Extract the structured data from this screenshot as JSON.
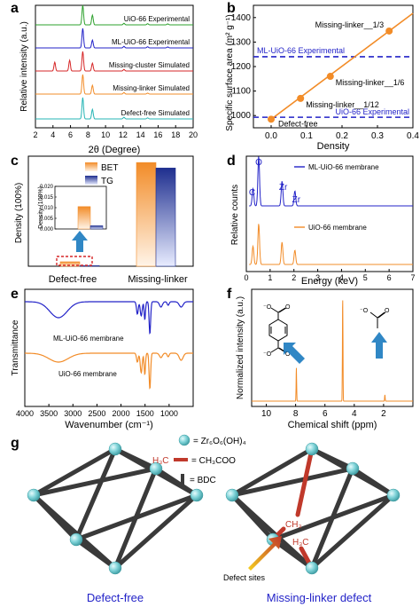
{
  "colors": {
    "green": "#2ca02c",
    "blue": "#2323c8",
    "red": "#d62728",
    "orange": "#f28c28",
    "cyan": "#26b5b5",
    "navy": "#1f2f8f",
    "dark": "#000000",
    "node": "#7fd3d8",
    "edge": "#3a3a3a",
    "defect_red": "#c0392b"
  },
  "panel_labels": [
    "a",
    "b",
    "c",
    "d",
    "e",
    "f",
    "g"
  ],
  "chart_data": [
    {
      "panel": "a",
      "type": "line",
      "xlabel": "2θ (Degree)",
      "ylabel": "Relative intensity (a.u.)",
      "xlim": [
        2,
        20
      ],
      "xticks": [
        2,
        4,
        6,
        8,
        10,
        12,
        14,
        16,
        18,
        20
      ],
      "series": [
        {
          "name": "UiO-66 Experimental",
          "color": "#2ca02c",
          "peaks": [
            [
              7.4,
              1.0
            ],
            [
              8.5,
              0.5
            ],
            [
              12.1,
              0.08
            ],
            [
              14.8,
              0.06
            ],
            [
              17.1,
              0.05
            ]
          ]
        },
        {
          "name": "ML-UiO-66 Experimental",
          "color": "#2323c8",
          "peaks": [
            [
              7.4,
              1.0
            ],
            [
              8.5,
              0.4
            ],
            [
              12.1,
              0.08
            ],
            [
              14.8,
              0.06
            ],
            [
              17.1,
              0.05
            ]
          ]
        },
        {
          "name": "Missing-cluster Simulated",
          "color": "#d62728",
          "peaks": [
            [
              4.2,
              0.45
            ],
            [
              5.9,
              0.55
            ],
            [
              7.4,
              1.0
            ],
            [
              8.5,
              0.4
            ],
            [
              12.1,
              0.08
            ]
          ]
        },
        {
          "name": "Missing-linker Simulated",
          "color": "#f28c28",
          "peaks": [
            [
              7.4,
              1.0
            ],
            [
              8.5,
              0.45
            ],
            [
              12.1,
              0.08
            ],
            [
              14.8,
              0.05
            ]
          ]
        },
        {
          "name": "Defect-free Simulated",
          "color": "#26b5b5",
          "peaks": [
            [
              7.4,
              1.0
            ],
            [
              8.5,
              0.45
            ],
            [
              12.1,
              0.08
            ],
            [
              14.8,
              0.05
            ]
          ]
        }
      ]
    },
    {
      "panel": "b",
      "type": "scatter",
      "xlabel": "Density",
      "ylabel": "Specific surface area (m² g⁻¹)",
      "xlim": [
        -0.05,
        0.4
      ],
      "ylim": [
        950,
        1450
      ],
      "xticks": [
        "0.0",
        "0.1",
        "0.2",
        "0.3",
        "0.4"
      ],
      "yticks": [
        "1000",
        "1100",
        "1200",
        "1300",
        "1400"
      ],
      "points": [
        {
          "label": "Defect-free",
          "x": 0.0,
          "y": 985
        },
        {
          "label": "Missing-linker__1/12",
          "x": 0.083,
          "y": 1070
        },
        {
          "label": "Missing-linker__1/6",
          "x": 0.167,
          "y": 1160
        },
        {
          "label": "Missing-linker__1/3",
          "x": 0.333,
          "y": 1345
        }
      ],
      "hlines": [
        {
          "label": "ML-UiO-66 Experimental",
          "y": 1240
        },
        {
          "label": "UiO-66 Experimental",
          "y": 993
        }
      ]
    },
    {
      "panel": "c",
      "type": "bar",
      "ylabel": "Density (100%)",
      "categories": [
        "Defect-free",
        "Missing-linker"
      ],
      "series": [
        {
          "name": "BET",
          "values": [
            0.0105,
            0.245
          ]
        },
        {
          "name": "TG",
          "values": [
            0.0015,
            0.232
          ]
        }
      ],
      "inset_ylabel": "Density (100%)",
      "inset_yticks": [
        "0.000",
        "0.005",
        "0.010",
        "0.015",
        "0.020"
      ],
      "inset_ylim": [
        0,
        0.02
      ]
    },
    {
      "panel": "d",
      "type": "line",
      "xlabel": "Energy (keV)",
      "ylabel": "Relative counts",
      "xlim": [
        0,
        7
      ],
      "xticks": [
        "0",
        "1",
        "2",
        "3",
        "4",
        "5",
        "6",
        "7"
      ],
      "series": [
        {
          "name": "ML-UiO-66 membrane",
          "peaks": [
            [
              0.28,
              0.35
            ],
            [
              0.52,
              1.0
            ],
            [
              1.5,
              0.5
            ],
            [
              2.04,
              0.3
            ]
          ]
        },
        {
          "name": "UiO-66 membrane",
          "peaks": [
            [
              0.28,
              0.45
            ],
            [
              0.52,
              1.0
            ],
            [
              1.5,
              0.55
            ],
            [
              2.04,
              0.35
            ]
          ]
        }
      ],
      "annotations": [
        "C",
        "O",
        "Zr",
        "Zr"
      ]
    },
    {
      "panel": "e",
      "type": "line",
      "xlabel": "Wavenumber (cm⁻¹)",
      "ylabel": "Transmittance",
      "xlim": [
        4000,
        500
      ],
      "xticks": [
        "4000",
        "3500",
        "3000",
        "2500",
        "2000",
        "1500",
        "1000"
      ],
      "series": [
        {
          "name": "ML-UiO-66 membrane"
        },
        {
          "name": "UiO-66 membrane"
        }
      ]
    },
    {
      "panel": "f",
      "type": "line",
      "xlabel": "Chemical shift (ppm)",
      "ylabel": "Normalized intensity (a.u.)",
      "xlim": [
        11,
        0
      ],
      "xticks": [
        "10",
        "8",
        "6",
        "4",
        "2"
      ],
      "peaks": [
        [
          7.95,
          0.32
        ],
        [
          4.79,
          1.0
        ],
        [
          1.91,
          0.06
        ]
      ]
    }
  ],
  "panel_g": {
    "legend_node": "= Zr₆O₆(OH)₄",
    "legend_defect_left": "H₃C",
    "legend_defect_right": "= CH₃COO",
    "legend_linker": "= BDC",
    "ch3_label": "CH₃",
    "h3c_label": "H₃C",
    "defect_sites_label": "Defect sites",
    "caption_left": "Defect-free",
    "caption_right": "Missing-linker defect"
  }
}
